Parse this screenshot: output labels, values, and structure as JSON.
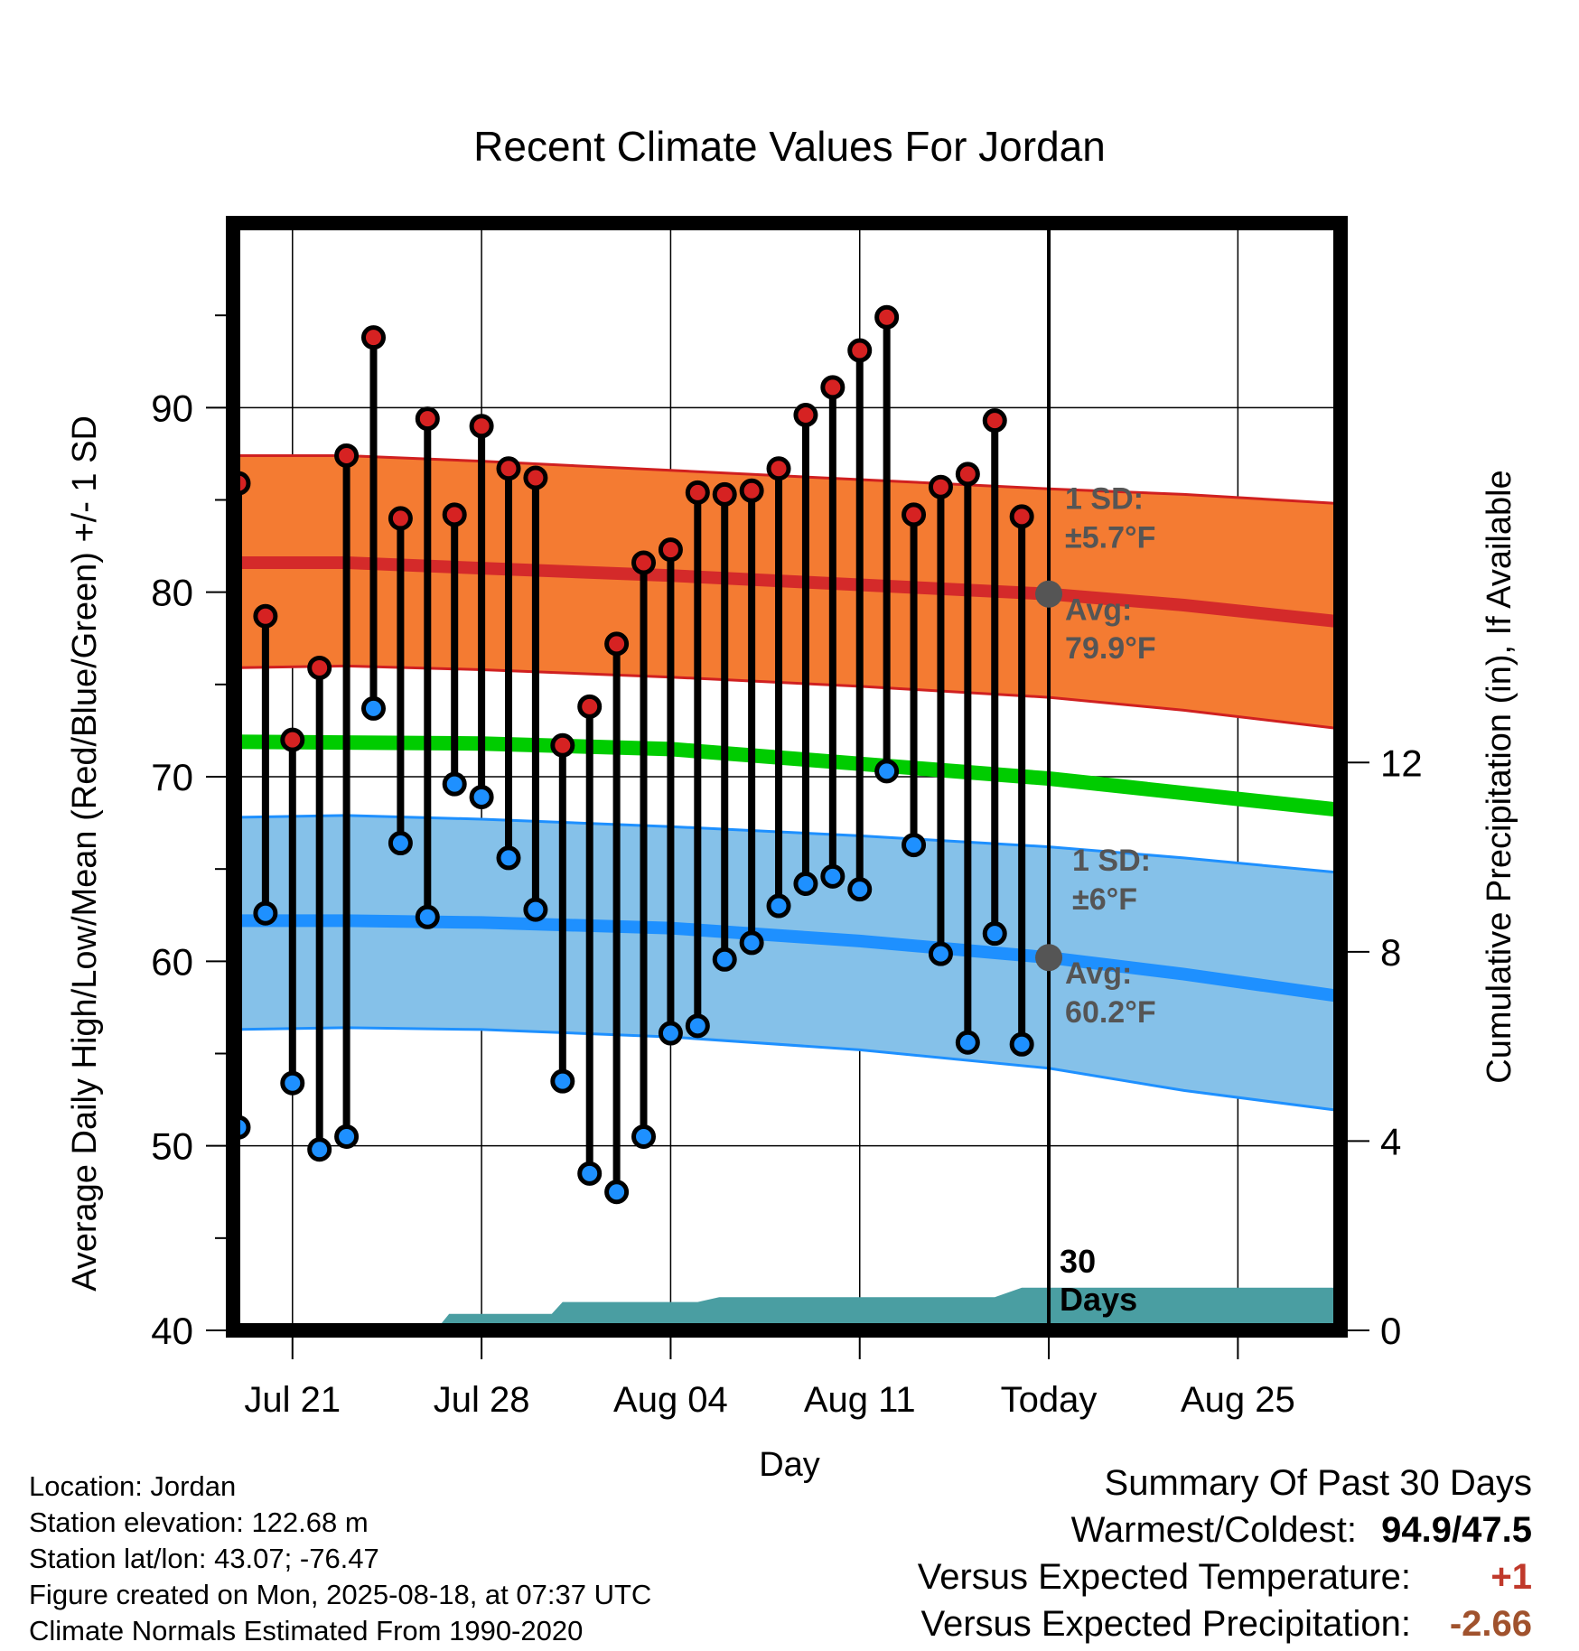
{
  "chart_data": {
    "type": "line",
    "title": "Recent Climate Values For Jordan",
    "xlabel": "Day",
    "ylabel": "Average Daily High/Low/Mean (Red/Blue/Green) +/- 1 SD",
    "ylabel_right": "Cumulative Precipitation (in), If Available",
    "ylim": [
      40,
      100
    ],
    "y_ticks": [
      40,
      50,
      60,
      70,
      80,
      90
    ],
    "y2lim": [
      0,
      23.4
    ],
    "y2_ticks": [
      0,
      4,
      8,
      12
    ],
    "xlim": [
      -2.2,
      38.8
    ],
    "x_ticks": [
      {
        "x": 0,
        "label": "Jul 21"
      },
      {
        "x": 7,
        "label": "Jul 28"
      },
      {
        "x": 14,
        "label": "Aug 04"
      },
      {
        "x": 21,
        "label": "Aug 11"
      },
      {
        "x": 28,
        "label": "Today"
      },
      {
        "x": 35,
        "label": "Aug 25"
      }
    ],
    "grid": true,
    "today_x": 28,
    "period_label_1": "30",
    "period_label_2": "Days",
    "daily_high": {
      "name": "High",
      "x": [
        -2,
        -1,
        0,
        1,
        2,
        3,
        4,
        5,
        6,
        7,
        8,
        9,
        10,
        11,
        12,
        13,
        14,
        15,
        16,
        17,
        18,
        19,
        20,
        21,
        22,
        23,
        24,
        25,
        26,
        27
      ],
      "values": [
        85.9,
        78.7,
        72.0,
        75.9,
        87.4,
        93.8,
        84.0,
        89.4,
        84.2,
        89.0,
        86.7,
        86.2,
        71.7,
        73.8,
        77.2,
        81.6,
        82.3,
        85.4,
        85.3,
        85.5,
        86.7,
        89.6,
        91.1,
        93.1,
        94.9,
        84.2,
        85.7,
        86.4,
        89.3,
        84.1
      ]
    },
    "daily_low": {
      "name": "Low",
      "x": [
        -2,
        -1,
        0,
        1,
        2,
        3,
        4,
        5,
        6,
        7,
        8,
        9,
        10,
        11,
        12,
        13,
        14,
        15,
        16,
        17,
        18,
        19,
        20,
        21,
        22,
        23,
        24,
        25,
        26,
        27
      ],
      "values": [
        51.0,
        62.6,
        53.4,
        49.8,
        50.5,
        73.7,
        66.4,
        62.4,
        69.6,
        68.9,
        65.6,
        62.8,
        53.5,
        48.5,
        47.5,
        50.5,
        56.1,
        56.5,
        60.1,
        61.0,
        63.0,
        64.2,
        64.6,
        63.9,
        70.3,
        66.3,
        60.4,
        55.6,
        61.5,
        55.5
      ]
    },
    "normal_high": {
      "name": "Avg High",
      "x": [
        -2.2,
        2,
        7,
        14,
        21,
        28,
        33,
        38.8
      ],
      "mean": [
        81.6,
        81.6,
        81.3,
        80.9,
        80.4,
        79.9,
        79.3,
        78.4
      ],
      "sd_upper": [
        87.4,
        87.4,
        87.1,
        86.6,
        86.1,
        85.6,
        85.3,
        84.8
      ],
      "sd_lower": [
        75.9,
        76.0,
        75.8,
        75.4,
        74.9,
        74.3,
        73.6,
        72.6
      ]
    },
    "normal_low": {
      "name": "Avg Low",
      "x": [
        -2.2,
        2,
        7,
        14,
        21,
        28,
        33,
        38.8
      ],
      "mean": [
        62.2,
        62.2,
        62.1,
        61.8,
        61.1,
        60.2,
        59.3,
        58.1
      ],
      "sd_upper": [
        67.8,
        67.9,
        67.7,
        67.3,
        66.8,
        66.2,
        65.6,
        64.8
      ],
      "sd_lower": [
        56.3,
        56.4,
        56.3,
        55.9,
        55.2,
        54.2,
        53.0,
        51.9
      ]
    },
    "normal_mean": {
      "name": "Mean",
      "x": [
        -2.2,
        7,
        14,
        21,
        28,
        38.8
      ],
      "values": [
        71.9,
        71.8,
        71.5,
        70.7,
        69.9,
        68.2
      ]
    },
    "precip_cumulative": {
      "name": "Cumulative Precipitation",
      "x": [
        -2.2,
        5.3,
        5.8,
        8.0,
        8.7,
        9.6,
        10.0,
        15.0,
        15.8,
        24.0,
        26.0,
        27.0,
        28.0,
        38.8
      ],
      "values": [
        0,
        0,
        0.35,
        0.35,
        0.35,
        0.35,
        0.6,
        0.6,
        0.7,
        0.7,
        0.7,
        0.9,
        0.9,
        0.9
      ]
    },
    "annotations": {
      "high_sd_line1": "1 SD:",
      "high_sd_line2": "±5.7°F",
      "high_avg_line1": "Avg:",
      "high_avg_line2": "79.9°F",
      "low_sd_line1": "1 SD:",
      "low_sd_line2": "±6°F",
      "low_avg_line1": "Avg:",
      "low_avg_line2": "60.2°F",
      "high_avg_value": 79.9,
      "low_avg_value": 60.2
    },
    "colors": {
      "high_band": "#f47b32",
      "high_mean": "#d42a2a",
      "high_edge": "#d02020",
      "low_band": "#85c1e9",
      "low_mean": "#1e90ff",
      "low_edge": "#1e90ff",
      "mean": "#00cc00",
      "precip": "#4a9ea2",
      "high_dot": "#d62222",
      "low_dot": "#1e90ff",
      "annotation": "#555555"
    }
  },
  "info": {
    "location": "Location: Jordan",
    "elevation": "Station elevation: 122.68 m",
    "latlon": "Station lat/lon: 43.07; -76.47",
    "created": "Figure created on Mon, 2025-08-18, at 07:37 UTC",
    "normals": "Climate Normals Estimated From 1990-2020"
  },
  "summary": {
    "title": "Summary Of Past 30 Days",
    "warmest_label": "Warmest/Coldest:",
    "warmest_value": "94.9/47.5",
    "temp_label": "Versus Expected Temperature:",
    "temp_value": "+1",
    "temp_color": "#c0392b",
    "precip_label": "Versus Expected Precipitation:",
    "precip_value": "-2.66",
    "precip_color": "#a0522d"
  }
}
